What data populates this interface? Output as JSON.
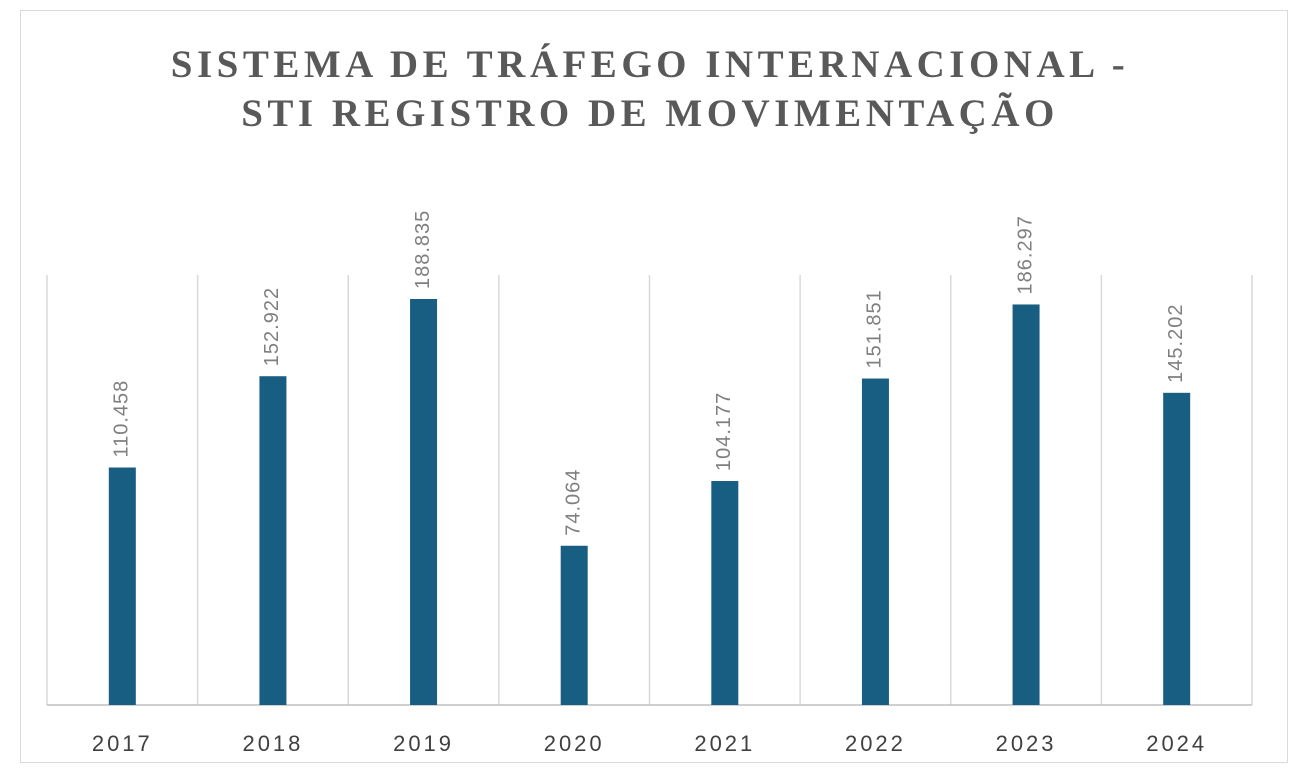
{
  "chart_data": {
    "type": "bar",
    "title": "SISTEMA DE TRÁFEGO INTERNACIONAL - STI REGISTRO DE MOVIMENTAÇÃO",
    "categories": [
      "2017",
      "2018",
      "2019",
      "2020",
      "2021",
      "2022",
      "2023",
      "2024"
    ],
    "values": [
      110458,
      152922,
      188835,
      74064,
      104177,
      151851,
      186297,
      145202
    ],
    "value_labels": [
      "110.458",
      "152.922",
      "188.835",
      "74.064",
      "104.177",
      "151.851",
      "186.297",
      "145.202"
    ],
    "color": "#175e82",
    "ylim": [
      0,
      200000
    ]
  }
}
